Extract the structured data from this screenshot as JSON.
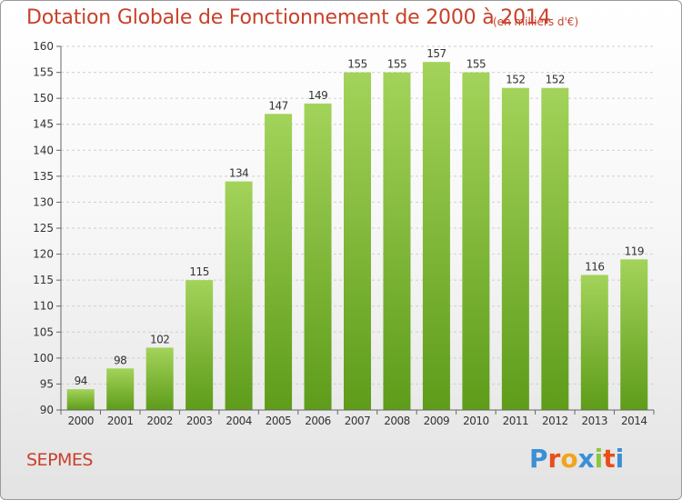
{
  "title": "Dotation Globale de Fonctionnement de 2000 à 2014",
  "unit": "(en milliers d'€)",
  "commune": "SEPMES",
  "logo": {
    "text": "Proxiti",
    "letters": [
      {
        "char": "P",
        "color": "#3a8fd6"
      },
      {
        "char": "r",
        "color": "#e84e1b"
      },
      {
        "char": "o",
        "color": "#f2a41b"
      },
      {
        "char": "x",
        "color": "#3a8fd6"
      },
      {
        "char": "i",
        "color": "#8cc63f"
      },
      {
        "char": "t",
        "color": "#e84e1b"
      },
      {
        "char": "i",
        "color": "#3a8fd6"
      }
    ]
  },
  "colors": {
    "bar_top": "#a3d35a",
    "bar_bottom": "#5e9c1a",
    "grid": "#cfcfcf",
    "axis_text": "#333333",
    "title": "#c8402a"
  },
  "chart_data": {
    "type": "bar",
    "categories": [
      "2000",
      "2001",
      "2002",
      "2003",
      "2004",
      "2005",
      "2006",
      "2007",
      "2008",
      "2009",
      "2010",
      "2011",
      "2012",
      "2013",
      "2014"
    ],
    "values": [
      94,
      98,
      102,
      115,
      134,
      147,
      149,
      155,
      155,
      157,
      155,
      152,
      152,
      116,
      119
    ],
    "ylim": [
      90,
      160
    ],
    "yticks": [
      90,
      95,
      100,
      105,
      110,
      115,
      120,
      125,
      130,
      135,
      140,
      145,
      150,
      155,
      160
    ],
    "grid": true,
    "grid_style": "dashed-horizontal",
    "legend": "none"
  }
}
